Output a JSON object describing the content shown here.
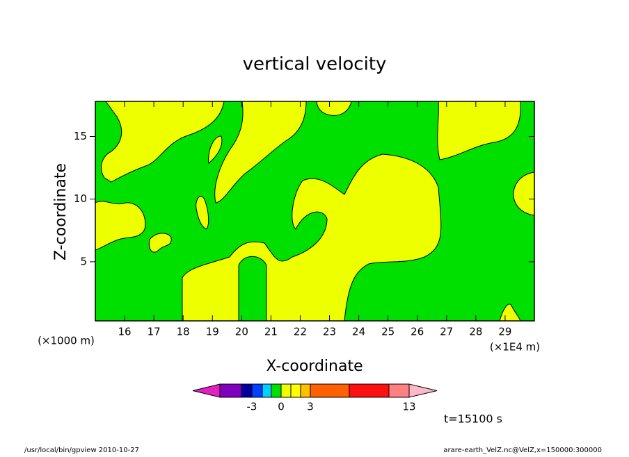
{
  "chart_data": {
    "type": "contour",
    "title": "vertical velocity",
    "xlabel": "X-coordinate",
    "ylabel": "Z-coordinate",
    "xunit": "(×1E4 m)",
    "yunit": "(×1000 m)",
    "xlim": [
      15,
      30
    ],
    "xticks": [
      16,
      17,
      18,
      19,
      20,
      21,
      22,
      23,
      24,
      25,
      26,
      27,
      28,
      29
    ],
    "ylim": [
      0.28,
      17.8
    ],
    "yticks": [
      5,
      10,
      15
    ],
    "colorbar": {
      "levels": [
        -10,
        -5,
        -3,
        -2,
        -1,
        0,
        1,
        2,
        3,
        5,
        10,
        13
      ],
      "colors": [
        "#e020c0",
        "#8000c0",
        "#0000a0",
        "#0040ff",
        "#00d0ff",
        "#00e000",
        "#eeff00",
        "#ffff00",
        "#ffc000",
        "#ff6000",
        "#ff1010",
        "#ff8080",
        "#ffb8c8"
      ],
      "ticks": [
        -3,
        0,
        3,
        13
      ]
    },
    "time": "t=15100 s",
    "footer_left": "/usr/local/bin/gpview  2010-10-27",
    "footer_right": "arare-earth_VelZ.nc@VelZ,x=150000:300000"
  }
}
